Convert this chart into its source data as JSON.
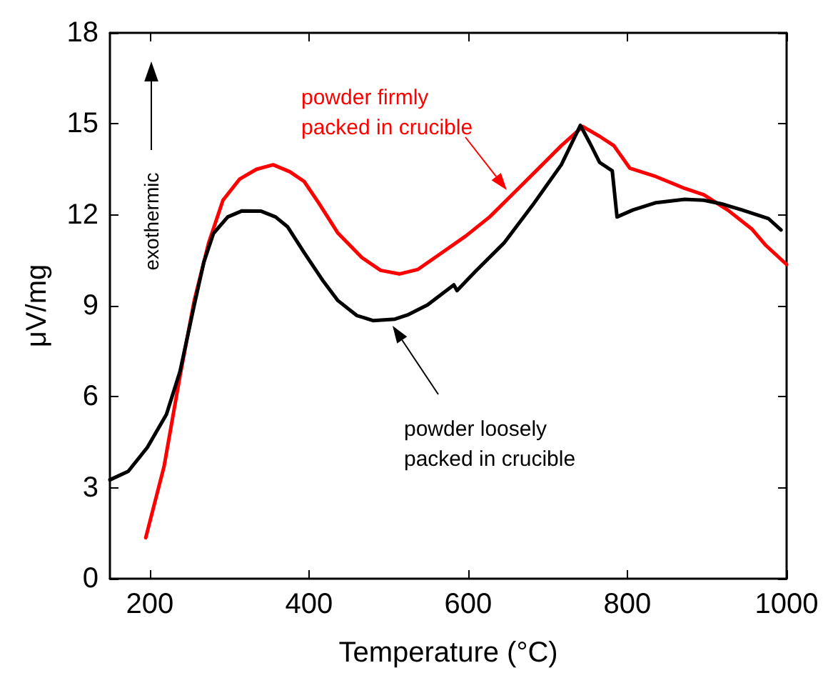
{
  "chart_data": {
    "type": "line",
    "xlabel": "Temperature (°C)",
    "ylabel": "μV/mg",
    "xlim": [
      150,
      1000
    ],
    "xticks": [
      200,
      400,
      600,
      800,
      1000
    ],
    "ylim": [
      0,
      18
    ],
    "yticks": [
      0,
      3,
      6,
      9,
      12,
      15,
      18
    ],
    "grid": false,
    "marker": "none",
    "line_style": "solid",
    "series": [
      {
        "color": "#ff0000",
        "x": [
          195,
          218,
          238,
          256,
          274,
          292,
          313,
          334,
          355,
          376,
          394,
          412,
          436,
          466,
          490,
          514,
          537,
          567,
          597,
          627,
          657,
          693,
          717,
          744,
          765,
          783,
          803,
          836,
          872,
          896,
          926,
          956,
          974,
          1000
        ],
        "values": [
          1.35,
          3.7,
          6.68,
          9.18,
          11.07,
          12.48,
          13.18,
          13.5,
          13.65,
          13.42,
          13.1,
          12.4,
          11.41,
          10.6,
          10.17,
          10.05,
          10.2,
          10.75,
          11.3,
          11.93,
          12.71,
          13.65,
          14.28,
          14.91,
          14.59,
          14.28,
          13.54,
          13.26,
          12.87,
          12.66,
          12.16,
          11.54,
          10.99,
          10.36
        ]
      },
      {
        "color": "#000000",
        "x": [
          150,
          173,
          197,
          221,
          238,
          256,
          268,
          280,
          298,
          316,
          340,
          358,
          373,
          394,
          418,
          436,
          460,
          481,
          508,
          525,
          549,
          582,
          586,
          609,
          645,
          681,
          717,
          741,
          753,
          765,
          781,
          787,
          807,
          836,
          872,
          896,
          920,
          944,
          977,
          993
        ],
        "values": [
          3.26,
          3.54,
          4.33,
          5.42,
          6.83,
          9.03,
          10.44,
          11.38,
          11.93,
          12.13,
          12.12,
          11.93,
          11.61,
          10.75,
          9.81,
          9.18,
          8.68,
          8.51,
          8.56,
          8.71,
          9.03,
          9.69,
          9.5,
          10.13,
          11.07,
          12.32,
          13.65,
          14.95,
          14.36,
          13.73,
          13.45,
          11.93,
          12.16,
          12.4,
          12.51,
          12.48,
          12.35,
          12.16,
          11.88,
          11.5
        ]
      }
    ],
    "annotations": [
      "powder firmly\npacked in crucible",
      "powder loosely\npacked in crucible",
      "exothermic"
    ]
  }
}
